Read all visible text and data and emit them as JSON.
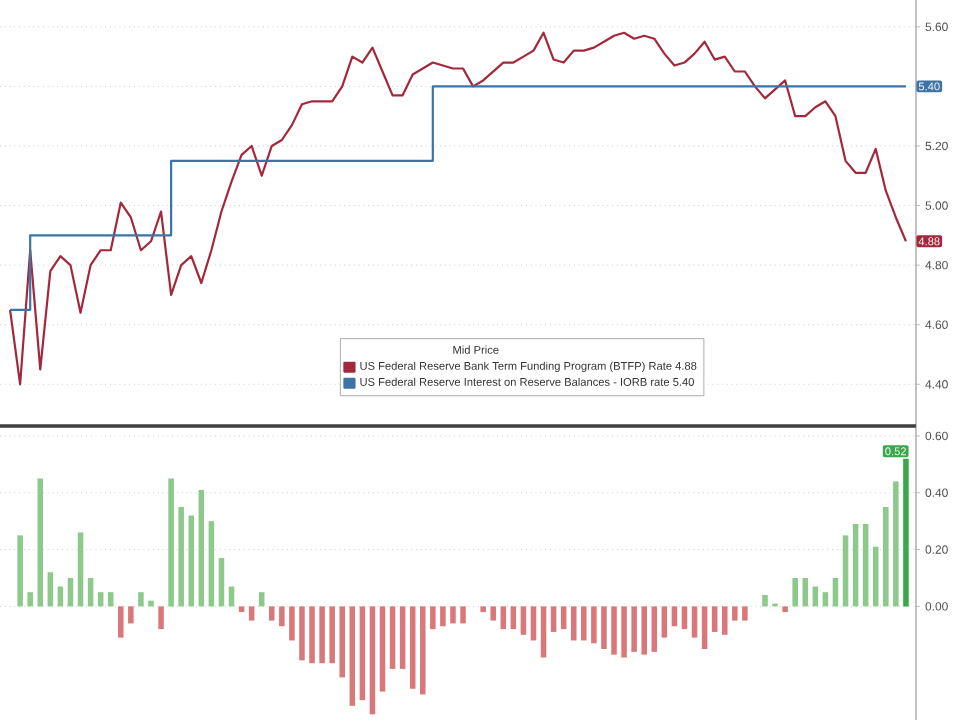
{
  "chart_data": [
    {
      "type": "line",
      "legend_title": "Mid Price",
      "legend": "bottom",
      "grid": "y",
      "tick_labels": "y",
      "categories": [
        null,
        null,
        null,
        null,
        null,
        null,
        null,
        null,
        null,
        null,
        null,
        null,
        null,
        null,
        null,
        null,
        null,
        null,
        null,
        null,
        null,
        null,
        null,
        null,
        null,
        null,
        null,
        null,
        null,
        null,
        null,
        null,
        null,
        null,
        null,
        null,
        null,
        null,
        null,
        null,
        null,
        null,
        null,
        null,
        null,
        null,
        null,
        null,
        null,
        null,
        null,
        null,
        null,
        null,
        null,
        null,
        null,
        null,
        null,
        null,
        null,
        null,
        null,
        null,
        null,
        null,
        null,
        null,
        null,
        null,
        null,
        null,
        null,
        null,
        null,
        null,
        null,
        null,
        null,
        null,
        null,
        null,
        null,
        null,
        null,
        null,
        null,
        null,
        null,
        null
      ],
      "ylim": [
        4.26,
        5.69
      ],
      "yticks": [
        {
          "value": 4.4,
          "label": "4.40"
        },
        {
          "value": 4.6,
          "label": "4.60"
        },
        {
          "value": 4.8,
          "label": "4.80"
        },
        {
          "value": 5.0,
          "label": "5.00"
        },
        {
          "value": 5.2,
          "label": "5.20"
        },
        {
          "value": 5.4,
          "label": null
        },
        {
          "value": 5.6,
          "label": "5.60"
        }
      ],
      "series": [
        {
          "name": "US Federal Reserve Bank Term Funding Program (BTFP) Rate  4.88",
          "color": "#a3283a",
          "values": [
            4.65,
            4.4,
            4.85,
            4.45,
            4.78,
            4.83,
            4.8,
            4.64,
            4.8,
            4.85,
            4.85,
            5.01,
            4.96,
            4.85,
            4.88,
            4.98,
            4.7,
            4.8,
            4.83,
            4.74,
            4.85,
            4.98,
            5.08,
            5.17,
            5.2,
            5.1,
            5.2,
            5.22,
            5.27,
            5.34,
            5.35,
            5.35,
            5.35,
            5.4,
            5.5,
            5.48,
            5.53,
            5.45,
            5.37,
            5.37,
            5.44,
            5.46,
            5.48,
            5.47,
            5.46,
            5.46,
            5.4,
            5.42,
            5.45,
            5.48,
            5.48,
            5.5,
            5.52,
            5.58,
            5.49,
            5.48,
            5.52,
            5.52,
            5.53,
            5.55,
            5.57,
            5.58,
            5.56,
            5.57,
            5.56,
            5.51,
            5.47,
            5.48,
            5.51,
            5.55,
            5.49,
            5.5,
            5.45,
            5.45,
            5.4,
            5.36,
            5.39,
            5.42,
            5.3,
            5.3,
            5.33,
            5.35,
            5.3,
            5.15,
            5.11,
            5.11,
            5.19,
            5.05,
            4.96,
            4.88
          ],
          "value_labels": [
            null,
            null,
            null,
            null,
            null,
            null,
            null,
            null,
            null,
            null,
            null,
            null,
            null,
            null,
            null,
            null,
            null,
            null,
            null,
            null,
            null,
            null,
            null,
            null,
            null,
            null,
            null,
            null,
            null,
            null,
            null,
            null,
            null,
            null,
            null,
            null,
            null,
            null,
            null,
            null,
            null,
            null,
            null,
            null,
            null,
            null,
            null,
            null,
            null,
            null,
            null,
            null,
            null,
            null,
            null,
            null,
            null,
            null,
            null,
            null,
            null,
            null,
            null,
            null,
            null,
            null,
            null,
            null,
            null,
            null,
            null,
            null,
            null,
            null,
            null,
            null,
            null,
            null,
            null,
            null,
            null,
            null,
            null,
            null,
            null,
            null,
            null,
            null,
            null,
            "4.88"
          ]
        },
        {
          "name": "US Federal Reserve Interest on Reserve Balances - IORB rate 5.40",
          "color": "#3d74a6",
          "type": "step",
          "values": [
            4.65,
            4.65,
            4.9,
            4.9,
            4.9,
            4.9,
            4.9,
            4.9,
            4.9,
            4.9,
            4.9,
            4.9,
            4.9,
            4.9,
            4.9,
            4.9,
            5.15,
            5.15,
            5.15,
            5.15,
            5.15,
            5.15,
            5.15,
            5.15,
            5.15,
            5.15,
            5.15,
            5.15,
            5.15,
            5.15,
            5.15,
            5.15,
            5.15,
            5.15,
            5.15,
            5.15,
            5.15,
            5.15,
            5.15,
            5.15,
            5.15,
            5.15,
            5.4,
            5.4,
            5.4,
            5.4,
            5.4,
            5.4,
            5.4,
            5.4,
            5.4,
            5.4,
            5.4,
            5.4,
            5.4,
            5.4,
            5.4,
            5.4,
            5.4,
            5.4,
            5.4,
            5.4,
            5.4,
            5.4,
            5.4,
            5.4,
            5.4,
            5.4,
            5.4,
            5.4,
            5.4,
            5.4,
            5.4,
            5.4,
            5.4,
            5.4,
            5.4,
            5.4,
            5.4,
            5.4,
            5.4,
            5.4,
            5.4,
            5.4,
            5.4,
            5.4,
            5.4,
            5.4,
            5.4,
            5.4
          ],
          "value_labels": [
            null,
            null,
            null,
            null,
            null,
            null,
            null,
            null,
            null,
            null,
            null,
            null,
            null,
            null,
            null,
            null,
            null,
            null,
            null,
            null,
            null,
            null,
            null,
            null,
            null,
            null,
            null,
            null,
            null,
            null,
            null,
            null,
            null,
            null,
            null,
            null,
            null,
            null,
            null,
            null,
            null,
            null,
            null,
            null,
            null,
            null,
            null,
            null,
            null,
            null,
            null,
            null,
            null,
            null,
            null,
            null,
            null,
            null,
            null,
            null,
            null,
            null,
            null,
            null,
            null,
            null,
            null,
            null,
            null,
            null,
            null,
            null,
            null,
            null,
            null,
            null,
            null,
            null,
            null,
            null,
            null,
            null,
            null,
            null,
            null,
            null,
            null,
            null,
            null,
            "5.40"
          ]
        }
      ]
    },
    {
      "type": "bar",
      "grid": "y",
      "tick_labels": "y",
      "categories": [
        null,
        null,
        null,
        null,
        null,
        null,
        null,
        null,
        null,
        null,
        null,
        null,
        null,
        null,
        null,
        null,
        null,
        null,
        null,
        null,
        null,
        null,
        null,
        null,
        null,
        null,
        null,
        null,
        null,
        null,
        null,
        null,
        null,
        null,
        null,
        null,
        null,
        null,
        null,
        null,
        null,
        null,
        null,
        null,
        null,
        null,
        null,
        null,
        null,
        null,
        null,
        null,
        null,
        null,
        null,
        null,
        null,
        null,
        null,
        null,
        null,
        null,
        null,
        null,
        null,
        null,
        null,
        null,
        null,
        null,
        null,
        null,
        null,
        null,
        null,
        null,
        null,
        null,
        null,
        null,
        null,
        null,
        null,
        null,
        null,
        null,
        null,
        null,
        null,
        null
      ],
      "ylim": [
        -0.4,
        0.635
      ],
      "yticks": [
        {
          "value": 0.0,
          "label": "0.00"
        },
        {
          "value": 0.2,
          "label": "0.20"
        },
        {
          "value": 0.4,
          "label": "0.40"
        },
        {
          "value": 0.6,
          "label": "0.60"
        }
      ],
      "values": [
        0.0,
        0.25,
        0.05,
        0.45,
        0.12,
        0.07,
        0.1,
        0.26,
        0.1,
        0.05,
        0.05,
        -0.11,
        -0.06,
        0.05,
        0.02,
        -0.08,
        0.45,
        0.35,
        0.32,
        0.41,
        0.3,
        0.17,
        0.07,
        -0.02,
        -0.05,
        0.05,
        -0.05,
        -0.07,
        -0.12,
        -0.19,
        -0.2,
        -0.2,
        -0.2,
        -0.25,
        -0.35,
        -0.33,
        -0.38,
        -0.3,
        -0.22,
        -0.22,
        -0.29,
        -0.31,
        -0.08,
        -0.07,
        -0.06,
        -0.06,
        0.0,
        -0.02,
        -0.05,
        -0.08,
        -0.08,
        -0.1,
        -0.12,
        -0.18,
        -0.09,
        -0.08,
        -0.12,
        -0.12,
        -0.13,
        -0.15,
        -0.17,
        -0.18,
        -0.16,
        -0.17,
        -0.16,
        -0.11,
        -0.07,
        -0.08,
        -0.11,
        -0.15,
        -0.09,
        -0.1,
        -0.05,
        -0.05,
        0.0,
        0.04,
        0.01,
        -0.02,
        0.1,
        0.1,
        0.07,
        0.05,
        0.1,
        0.25,
        0.29,
        0.29,
        0.21,
        0.35,
        0.44,
        0.52
      ],
      "colors": [
        "#8cc98a",
        "#8cc98a",
        "#8cc98a",
        "#8cc98a",
        "#8cc98a",
        "#8cc98a",
        "#8cc98a",
        "#8cc98a",
        "#8cc98a",
        "#8cc98a",
        "#8cc98a",
        "#d9787a",
        "#d9787a",
        "#8cc98a",
        "#8cc98a",
        "#d9787a",
        "#8cc98a",
        "#8cc98a",
        "#8cc98a",
        "#8cc98a",
        "#8cc98a",
        "#8cc98a",
        "#8cc98a",
        "#d9787a",
        "#d9787a",
        "#8cc98a",
        "#d9787a",
        "#d9787a",
        "#d9787a",
        "#d9787a",
        "#d9787a",
        "#d9787a",
        "#d9787a",
        "#d9787a",
        "#d9787a",
        "#d9787a",
        "#d9787a",
        "#d9787a",
        "#d9787a",
        "#d9787a",
        "#d9787a",
        "#d9787a",
        "#d9787a",
        "#d9787a",
        "#d9787a",
        "#d9787a",
        "#d9787a",
        "#d9787a",
        "#d9787a",
        "#d9787a",
        "#d9787a",
        "#d9787a",
        "#d9787a",
        "#d9787a",
        "#d9787a",
        "#d9787a",
        "#d9787a",
        "#d9787a",
        "#d9787a",
        "#d9787a",
        "#d9787a",
        "#d9787a",
        "#d9787a",
        "#d9787a",
        "#d9787a",
        "#d9787a",
        "#d9787a",
        "#d9787a",
        "#d9787a",
        "#d9787a",
        "#d9787a",
        "#d9787a",
        "#d9787a",
        "#d9787a",
        "#d9787a",
        "#8cc98a",
        "#8cc98a",
        "#d9787a",
        "#8cc98a",
        "#8cc98a",
        "#8cc98a",
        "#8cc98a",
        "#8cc98a",
        "#8cc98a",
        "#8cc98a",
        "#8cc98a",
        "#8cc98a",
        "#8cc98a",
        "#8cc98a",
        "#3aa84a"
      ],
      "value_labels": [
        null,
        null,
        null,
        null,
        null,
        null,
        null,
        null,
        null,
        null,
        null,
        null,
        null,
        null,
        null,
        null,
        null,
        null,
        null,
        null,
        null,
        null,
        null,
        null,
        null,
        null,
        null,
        null,
        null,
        null,
        null,
        null,
        null,
        null,
        null,
        null,
        null,
        null,
        null,
        null,
        null,
        null,
        null,
        null,
        null,
        null,
        null,
        null,
        null,
        null,
        null,
        null,
        null,
        null,
        null,
        null,
        null,
        null,
        null,
        null,
        null,
        null,
        null,
        null,
        null,
        null,
        null,
        null,
        null,
        null,
        null,
        null,
        null,
        null,
        null,
        null,
        null,
        null,
        null,
        null,
        null,
        null,
        null,
        null,
        null,
        null,
        null,
        null,
        null,
        "0.52"
      ]
    }
  ]
}
